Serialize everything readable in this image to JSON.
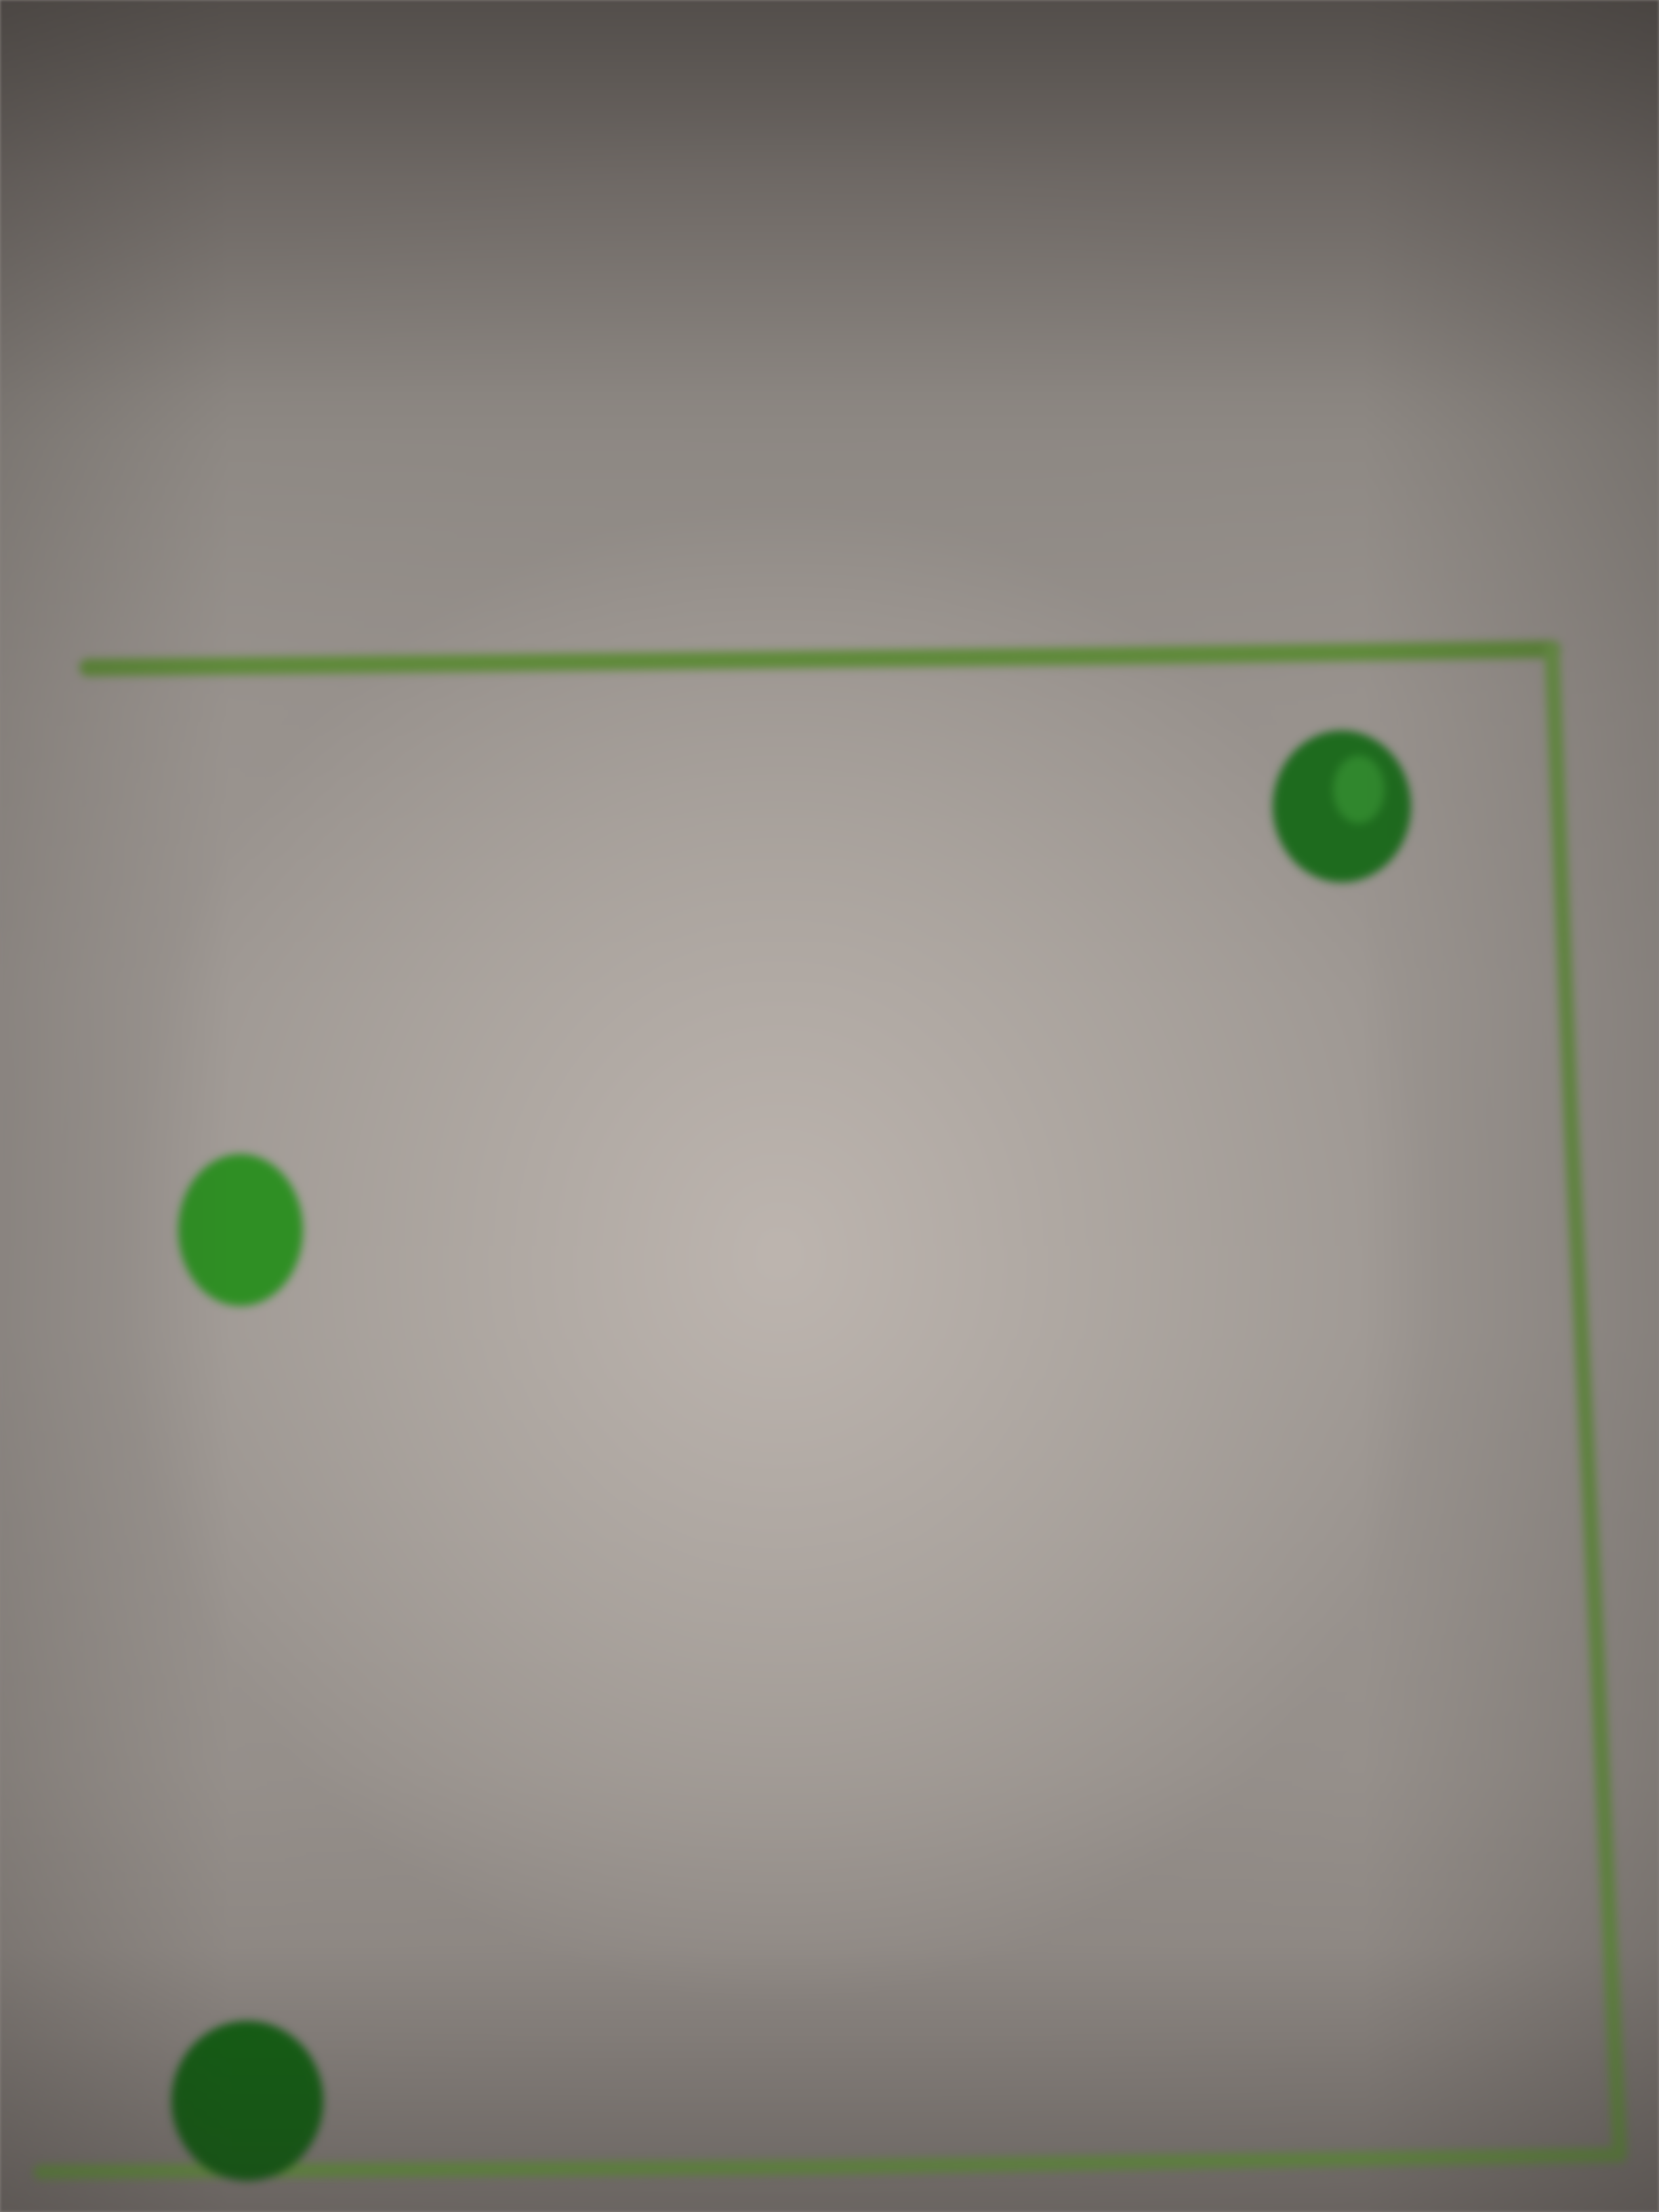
{
  "photo": {
    "subject": "",
    "colors": {
      "paper": "#a8a29d",
      "line": "#5f8a3a",
      "dot_dark": "#1e6b1e",
      "dot_light": "#2f8f24"
    }
  }
}
